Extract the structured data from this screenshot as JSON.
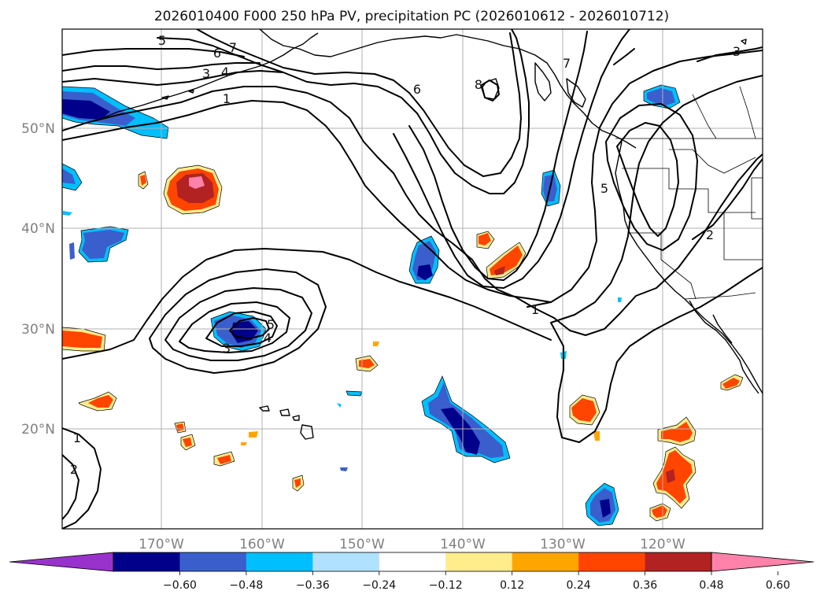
{
  "title": "2026010400 F000 250 hPa PV, precipitation PC (2026010612 - 2026010712)",
  "map": {
    "lat_labels": [
      "50°N",
      "40°N",
      "30°N",
      "20°N"
    ],
    "lon_labels": [
      "170°W",
      "160°W",
      "150°W",
      "140°W",
      "130°W",
      "120°W"
    ],
    "gridlines": true
  },
  "pv_contours": {
    "label_values": [
      "5",
      "6",
      "7",
      "3",
      "4",
      "1",
      "6",
      "8",
      "7",
      "3",
      "5",
      "2",
      "1",
      "5",
      "4",
      "3",
      "1",
      "2"
    ]
  },
  "colorbar": {
    "tick_labels": [
      "−0.60",
      "−0.48",
      "−0.36",
      "−0.24",
      "−0.12",
      "0.12",
      "0.24",
      "0.36",
      "0.48",
      "0.60"
    ],
    "colors": [
      "#9932cc",
      "#00008b",
      "#3a5fcd",
      "#00bfff",
      "#b0e2ff",
      "#ffffff",
      "#ffec8b",
      "#ffa500",
      "#ff4500",
      "#b22222",
      "#ff82ab"
    ],
    "extend": "both"
  },
  "colors": {
    "neg_strong": "#00008b",
    "neg_mid": "#3a5fcd",
    "neg_light": "#00bfff",
    "pos_light": "#ffec8b",
    "pos_mid": "#ffa500",
    "pos_strong": "#ff4500",
    "pos_dark": "#b22222",
    "pos_max": "#ff82ab"
  }
}
